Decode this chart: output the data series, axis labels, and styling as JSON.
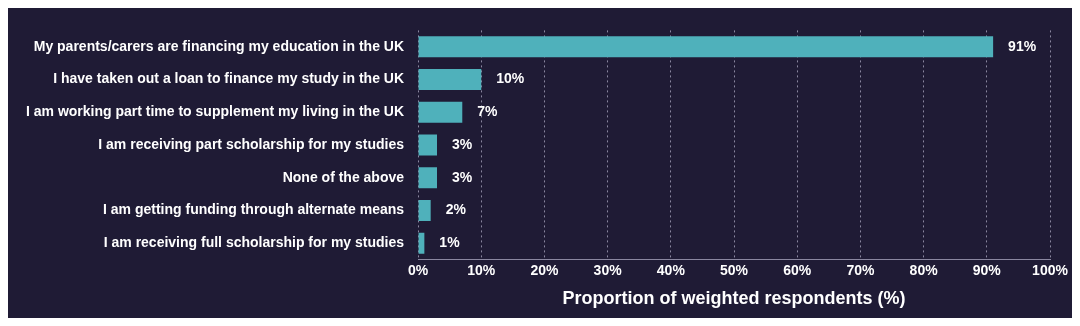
{
  "chart_data": {
    "type": "bar",
    "orientation": "horizontal",
    "xlabel": "Proportion of weighted respondents (%)",
    "categories": [
      "My parents/carers are financing my education in the UK",
      "I have taken out a loan to finance my study in the UK",
      "I am working part time to supplement my living in the UK",
      "I am receiving part scholarship for my studies",
      "None of the above",
      "I am getting funding through alternate means",
      "I am receiving full scholarship for my studies"
    ],
    "values": [
      91,
      10,
      7,
      3,
      3,
      2,
      1
    ],
    "color": "#4fb1bb",
    "data_labels": true,
    "value_labels": [
      "91%",
      "10%",
      "7%",
      "3%",
      "3%",
      "2%",
      "1%"
    ],
    "xlim": [
      0,
      100
    ],
    "xticks": [
      {
        "value": 0,
        "label": "0%"
      },
      {
        "value": 10,
        "label": "10%"
      },
      {
        "value": 20,
        "label": "20%"
      },
      {
        "value": 30,
        "label": "30%"
      },
      {
        "value": 40,
        "label": "40%"
      },
      {
        "value": 50,
        "label": "50%"
      },
      {
        "value": 60,
        "label": "60%"
      },
      {
        "value": 70,
        "label": "70%"
      },
      {
        "value": 80,
        "label": "80%"
      },
      {
        "value": 90,
        "label": "90%"
      },
      {
        "value": 100,
        "label": "100%"
      }
    ],
    "grid": "x"
  }
}
